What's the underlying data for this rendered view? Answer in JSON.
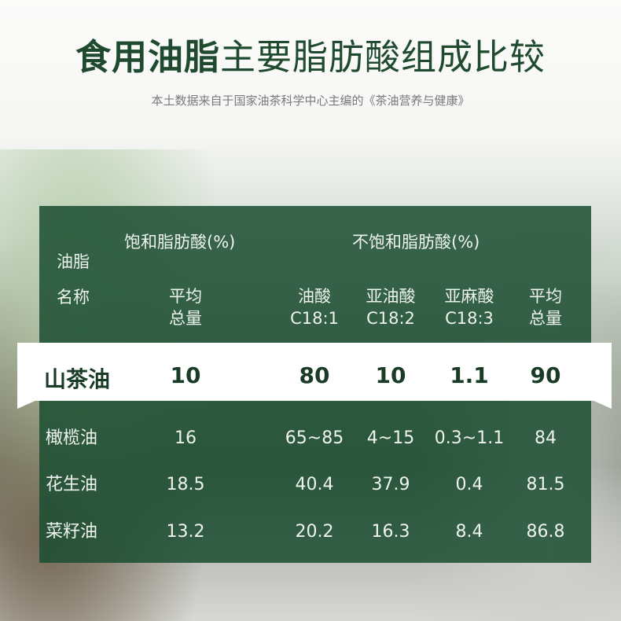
{
  "title": {
    "bold": "食用油脂",
    "regular": "主要脂肪酸组成比较"
  },
  "subtitle": "本土数据来自于国家油茶科学中心主编的《茶油营养与健康》",
  "colors": {
    "title": "#1f4a2f",
    "panel": "#1c4e32",
    "highlight_row": "#ffffff"
  },
  "chart_data": {
    "type": "table",
    "header": {
      "name_col": [
        "油脂",
        "名称"
      ],
      "group_saturated": "饱和脂肪酸(%)",
      "group_unsaturated": "不饱和脂肪酸(%)",
      "columns": [
        [
          "平均",
          "总量"
        ],
        [
          "油酸",
          "C18:1"
        ],
        [
          "亚油酸",
          "C18:2"
        ],
        [
          "亚麻酸",
          "C18:3"
        ],
        [
          "平均",
          "总量"
        ]
      ]
    },
    "rows": [
      {
        "name": "山茶油",
        "values": [
          "10",
          "80",
          "10",
          "1.1",
          "90"
        ],
        "highlighted": true
      },
      {
        "name": "橄榄油",
        "values": [
          "16",
          "65~85",
          "4~15",
          "0.3~1.1",
          "84"
        ]
      },
      {
        "name": "花生油",
        "values": [
          "18.5",
          "40.4",
          "37.9",
          "0.4",
          "81.5"
        ]
      },
      {
        "name": "菜籽油",
        "values": [
          "13.2",
          "20.2",
          "16.3",
          "8.4",
          "86.8"
        ]
      }
    ]
  }
}
